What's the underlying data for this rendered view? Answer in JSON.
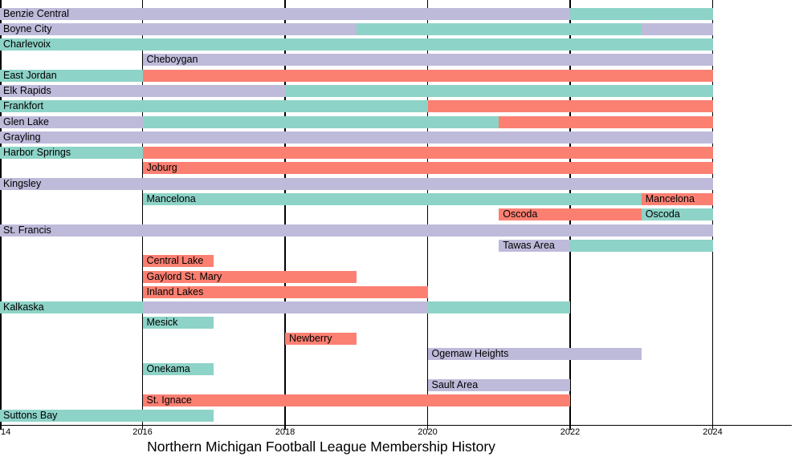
{
  "colors": {
    "teal": "#8DD3C7",
    "lavender": "#BEBADA",
    "salmon": "#FB8072",
    "grid": "#000000",
    "text": "#000000",
    "background": "#FFFFFF"
  },
  "x_axis": {
    "ticks": [
      {
        "label": "14",
        "year": 2014,
        "clipped": true
      },
      {
        "label": "2016",
        "year": 2016
      },
      {
        "label": "2018",
        "year": 2018
      },
      {
        "label": "2020",
        "year": 2020
      },
      {
        "label": "2022",
        "year": 2022
      },
      {
        "label": "2024",
        "year": 2024
      }
    ]
  },
  "chart_data": {
    "type": "bar",
    "subtype": "horizontal-timeline-gantt",
    "title": "Northern Michigan Football League Membership History",
    "x_range": [
      2014,
      2025.1
    ],
    "grid": "vertical-black-lines",
    "legend": "none",
    "rows": [
      {
        "name": "Benzie Central",
        "segments": [
          {
            "start": 2014,
            "end": 2022,
            "color": "lavender",
            "label": "Benzie Central"
          },
          {
            "start": 2022,
            "end": 2024,
            "color": "teal"
          }
        ]
      },
      {
        "name": "Boyne City",
        "segments": [
          {
            "start": 2014,
            "end": 2019,
            "color": "lavender",
            "label": "Boyne City"
          },
          {
            "start": 2019,
            "end": 2023,
            "color": "teal"
          },
          {
            "start": 2023,
            "end": 2024,
            "color": "lavender"
          }
        ]
      },
      {
        "name": "Charlevoix",
        "segments": [
          {
            "start": 2014,
            "end": 2024,
            "color": "teal",
            "label": "Charlevoix"
          }
        ]
      },
      {
        "name": "Cheboygan",
        "segments": [
          {
            "start": 2016,
            "end": 2024,
            "color": "lavender",
            "label": "Cheboygan"
          }
        ]
      },
      {
        "name": "East Jordan",
        "segments": [
          {
            "start": 2014,
            "end": 2016,
            "color": "teal",
            "label": "East Jordan"
          },
          {
            "start": 2016,
            "end": 2024,
            "color": "salmon"
          }
        ]
      },
      {
        "name": "Elk Rapids",
        "segments": [
          {
            "start": 2014,
            "end": 2018,
            "color": "lavender",
            "label": "Elk Rapids"
          },
          {
            "start": 2018,
            "end": 2024,
            "color": "teal"
          }
        ]
      },
      {
        "name": "Frankfort",
        "segments": [
          {
            "start": 2014,
            "end": 2020,
            "color": "teal",
            "label": "Frankfort"
          },
          {
            "start": 2020,
            "end": 2024,
            "color": "salmon"
          }
        ]
      },
      {
        "name": "Glen Lake",
        "segments": [
          {
            "start": 2014,
            "end": 2016,
            "color": "lavender",
            "label": "Glen Lake"
          },
          {
            "start": 2016,
            "end": 2021,
            "color": "teal"
          },
          {
            "start": 2021,
            "end": 2024,
            "color": "salmon"
          }
        ]
      },
      {
        "name": "Grayling",
        "segments": [
          {
            "start": 2014,
            "end": 2024,
            "color": "lavender",
            "label": "Grayling"
          }
        ]
      },
      {
        "name": "Harbor Springs",
        "segments": [
          {
            "start": 2014,
            "end": 2016,
            "color": "teal",
            "label": "Harbor Springs"
          },
          {
            "start": 2016,
            "end": 2024,
            "color": "salmon"
          }
        ]
      },
      {
        "name": "Joburg",
        "segments": [
          {
            "start": 2016,
            "end": 2024,
            "color": "salmon",
            "label": "Joburg"
          }
        ]
      },
      {
        "name": "Kingsley",
        "segments": [
          {
            "start": 2014,
            "end": 2024,
            "color": "lavender",
            "label": "Kingsley"
          }
        ]
      },
      {
        "name": "Mancelona",
        "segments": [
          {
            "start": 2016,
            "end": 2023,
            "color": "teal",
            "label": "Mancelona"
          },
          {
            "start": 2023,
            "end": 2024,
            "color": "salmon",
            "label": "Mancelona"
          }
        ]
      },
      {
        "name": "Oscoda",
        "segments": [
          {
            "start": 2021,
            "end": 2023,
            "color": "salmon",
            "label": "Oscoda"
          },
          {
            "start": 2023,
            "end": 2024,
            "color": "teal",
            "label": "Oscoda"
          }
        ]
      },
      {
        "name": "St. Francis",
        "segments": [
          {
            "start": 2014,
            "end": 2024,
            "color": "lavender",
            "label": "St. Francis"
          }
        ]
      },
      {
        "name": "Tawas Area",
        "segments": [
          {
            "start": 2021,
            "end": 2022,
            "color": "lavender",
            "label": "Tawas Area"
          },
          {
            "start": 2022,
            "end": 2024,
            "color": "teal"
          }
        ]
      },
      {
        "name": "Central Lake",
        "segments": [
          {
            "start": 2016,
            "end": 2017,
            "color": "salmon",
            "label": "Central Lake"
          }
        ]
      },
      {
        "name": "Gaylord St. Mary",
        "segments": [
          {
            "start": 2016,
            "end": 2019,
            "color": "salmon",
            "label": "Gaylord St. Mary"
          }
        ]
      },
      {
        "name": "Inland Lakes",
        "segments": [
          {
            "start": 2016,
            "end": 2020,
            "color": "salmon",
            "label": "Inland Lakes"
          }
        ]
      },
      {
        "name": "Kalkaska",
        "segments": [
          {
            "start": 2014,
            "end": 2016,
            "color": "teal",
            "label": "Kalkaska"
          },
          {
            "start": 2016,
            "end": 2020,
            "color": "lavender"
          },
          {
            "start": 2020,
            "end": 2022,
            "color": "teal"
          }
        ]
      },
      {
        "name": "Mesick",
        "segments": [
          {
            "start": 2016,
            "end": 2017,
            "color": "teal",
            "label": "Mesick"
          }
        ]
      },
      {
        "name": "Newberry",
        "segments": [
          {
            "start": 2018,
            "end": 2019,
            "color": "salmon",
            "label": "Newberry"
          }
        ]
      },
      {
        "name": "Ogemaw Heights",
        "segments": [
          {
            "start": 2020,
            "end": 2023,
            "color": "lavender",
            "label": "Ogemaw Heights"
          }
        ]
      },
      {
        "name": "Onekama",
        "segments": [
          {
            "start": 2016,
            "end": 2017,
            "color": "teal",
            "label": "Onekama"
          }
        ]
      },
      {
        "name": "Sault Area",
        "segments": [
          {
            "start": 2020,
            "end": 2022,
            "color": "lavender",
            "label": "Sault Area"
          }
        ]
      },
      {
        "name": "St. Ignace",
        "segments": [
          {
            "start": 2016,
            "end": 2022,
            "color": "salmon",
            "label": "St. Ignace"
          }
        ]
      },
      {
        "name": "Suttons Bay",
        "segments": [
          {
            "start": 2014,
            "end": 2017,
            "color": "teal",
            "label": "Suttons Bay"
          }
        ]
      }
    ]
  }
}
